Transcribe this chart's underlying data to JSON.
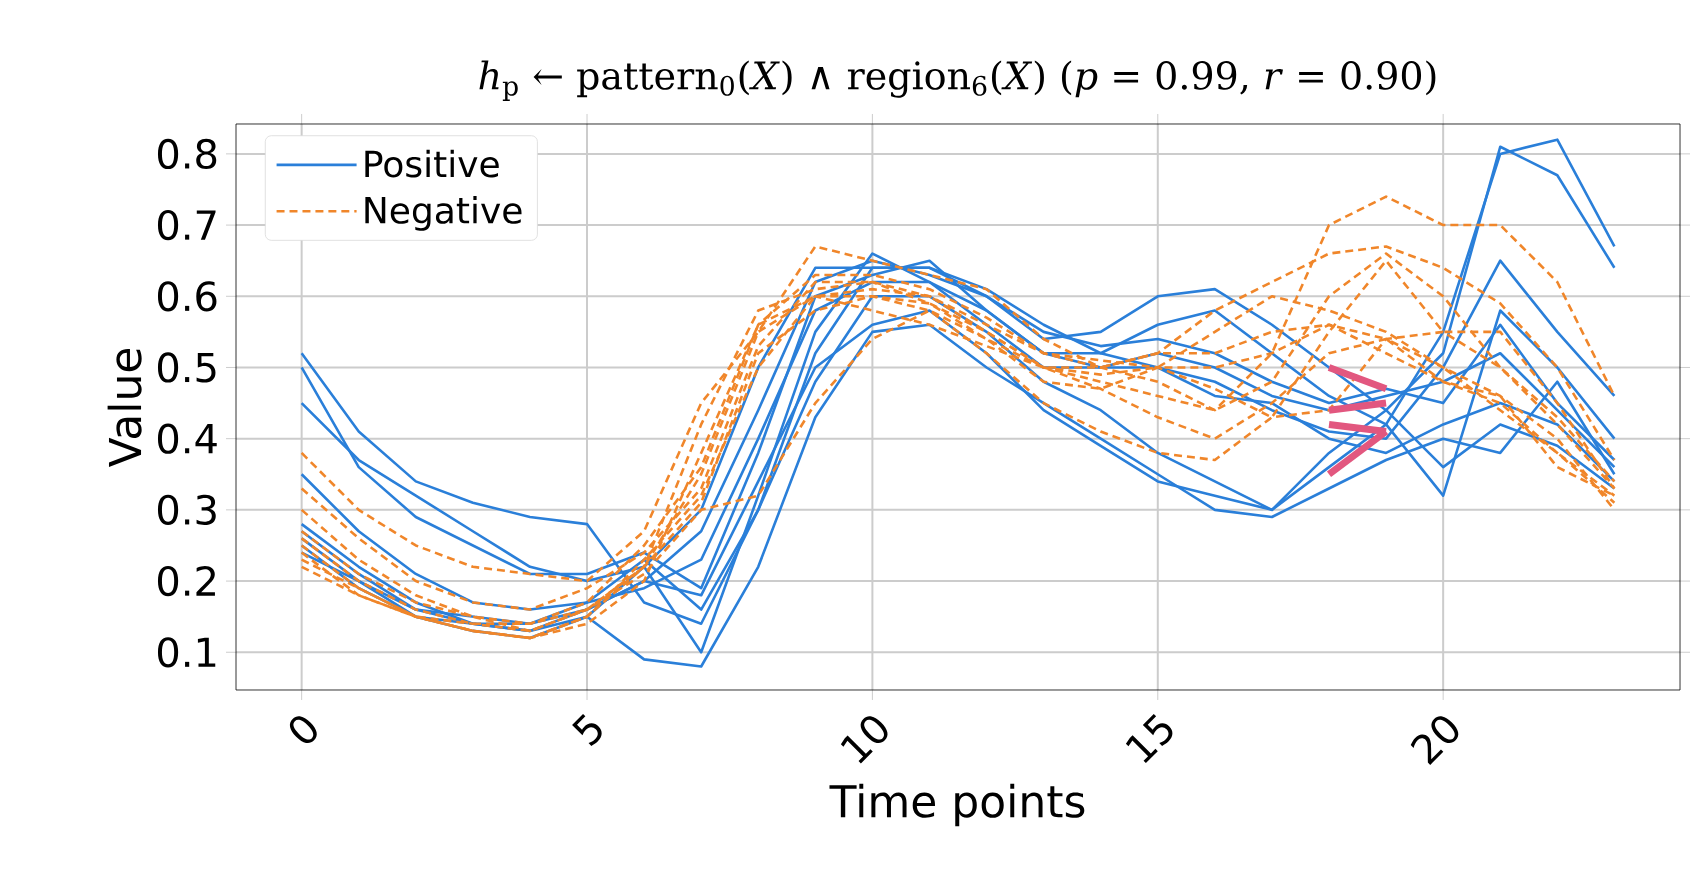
{
  "chart_data": {
    "type": "line",
    "title": "*h*$_{p}$ ← pattern$_{0}$(*X*) ∧ region$_{6}$(*X*) (*p* = 0.99, *r* = 0.90)",
    "xlabel": "Time points",
    "ylabel": "Value",
    "x": [
      0,
      1,
      2,
      3,
      4,
      5,
      6,
      7,
      8,
      9,
      10,
      11,
      12,
      13,
      14,
      15,
      16,
      17,
      18,
      19,
      20,
      21,
      22,
      23
    ],
    "xlim": [
      -1.15,
      24.15
    ],
    "ylim": [
      0.047,
      0.842
    ],
    "xticks": [
      0,
      5,
      10,
      15,
      20
    ],
    "yticks": [
      0.1,
      0.2,
      0.3,
      0.4,
      0.5,
      0.6,
      0.7,
      0.8
    ],
    "grid": true,
    "legend": "top left",
    "marker": "none",
    "series": [
      {
        "name": "Positive",
        "color": "#2a7fd9",
        "line_style": "solid",
        "values": [
          0.52,
          0.41,
          0.34,
          0.31,
          0.29,
          0.28,
          0.17,
          0.14,
          0.3,
          0.52,
          0.64,
          0.64,
          0.6,
          0.54,
          0.55,
          0.6,
          0.61,
          0.56,
          0.5,
          0.44,
          0.52,
          0.81,
          0.77,
          0.64
        ]
      },
      {
        "color": "#2a7fd9",
        "line_style": "solid",
        "values": [
          0.5,
          0.36,
          0.29,
          0.25,
          0.21,
          0.21,
          0.24,
          0.19,
          0.38,
          0.6,
          0.63,
          0.65,
          0.58,
          0.52,
          0.52,
          0.56,
          0.58,
          0.52,
          0.46,
          0.42,
          0.55,
          0.8,
          0.82,
          0.67
        ]
      },
      {
        "color": "#2a7fd9",
        "line_style": "solid",
        "values": [
          0.45,
          0.37,
          0.32,
          0.27,
          0.22,
          0.2,
          0.22,
          0.1,
          0.32,
          0.55,
          0.66,
          0.62,
          0.56,
          0.5,
          0.5,
          0.5,
          0.48,
          0.44,
          0.41,
          0.4,
          0.5,
          0.65,
          0.55,
          0.46
        ]
      },
      {
        "color": "#2a7fd9",
        "line_style": "solid",
        "values": [
          0.35,
          0.27,
          0.21,
          0.17,
          0.16,
          0.17,
          0.23,
          0.16,
          0.3,
          0.48,
          0.6,
          0.6,
          0.55,
          0.48,
          0.44,
          0.38,
          0.34,
          0.3,
          0.36,
          0.42,
          0.32,
          0.58,
          0.5,
          0.4
        ]
      },
      {
        "color": "#2a7fd9",
        "line_style": "solid",
        "values": [
          0.28,
          0.22,
          0.17,
          0.14,
          0.13,
          0.15,
          0.09,
          0.08,
          0.22,
          0.43,
          0.55,
          0.56,
          0.5,
          0.45,
          0.4,
          0.35,
          0.3,
          0.29,
          0.33,
          0.37,
          0.4,
          0.38,
          0.48,
          0.35
        ]
      },
      {
        "color": "#2a7fd9",
        "line_style": "solid",
        "values": [
          0.27,
          0.21,
          0.16,
          0.14,
          0.13,
          0.16,
          0.2,
          0.27,
          0.44,
          0.62,
          0.65,
          0.63,
          0.6,
          0.55,
          0.53,
          0.54,
          0.52,
          0.48,
          0.45,
          0.47,
          0.45,
          0.56,
          0.45,
          0.37
        ]
      },
      {
        "color": "#2a7fd9",
        "line_style": "solid",
        "values": [
          0.26,
          0.2,
          0.15,
          0.13,
          0.12,
          0.15,
          0.22,
          0.3,
          0.5,
          0.64,
          0.64,
          0.64,
          0.61,
          0.56,
          0.52,
          0.5,
          0.46,
          0.45,
          0.4,
          0.38,
          0.42,
          0.45,
          0.42,
          0.34
        ]
      },
      {
        "color": "#2a7fd9",
        "line_style": "solid",
        "values": [
          0.25,
          0.19,
          0.15,
          0.14,
          0.14,
          0.16,
          0.2,
          0.18,
          0.34,
          0.5,
          0.56,
          0.58,
          0.52,
          0.44,
          0.39,
          0.34,
          0.32,
          0.3,
          0.38,
          0.44,
          0.36,
          0.42,
          0.39,
          0.33
        ]
      },
      {
        "color": "#2a7fd9",
        "line_style": "solid",
        "values": [
          0.24,
          0.2,
          0.16,
          0.15,
          0.14,
          0.17,
          0.19,
          0.23,
          0.4,
          0.58,
          0.62,
          0.62,
          0.58,
          0.52,
          0.5,
          0.52,
          0.5,
          0.46,
          0.44,
          0.46,
          0.48,
          0.52,
          0.44,
          0.36
        ]
      },
      {
        "name": "Negative",
        "color": "#f0862a",
        "line_style": "dashed",
        "values": [
          0.38,
          0.3,
          0.25,
          0.22,
          0.21,
          0.2,
          0.27,
          0.45,
          0.55,
          0.67,
          0.65,
          0.63,
          0.61,
          0.54,
          0.5,
          0.48,
          0.44,
          0.52,
          0.7,
          0.74,
          0.7,
          0.7,
          0.62,
          0.46
        ]
      },
      {
        "color": "#f0862a",
        "line_style": "dashed",
        "values": [
          0.33,
          0.26,
          0.2,
          0.17,
          0.16,
          0.19,
          0.24,
          0.33,
          0.53,
          0.62,
          0.62,
          0.6,
          0.56,
          0.52,
          0.5,
          0.52,
          0.58,
          0.62,
          0.66,
          0.67,
          0.64,
          0.59,
          0.5,
          0.37
        ]
      },
      {
        "color": "#f0862a",
        "line_style": "dashed",
        "values": [
          0.3,
          0.23,
          0.18,
          0.15,
          0.14,
          0.17,
          0.25,
          0.36,
          0.56,
          0.63,
          0.63,
          0.61,
          0.57,
          0.52,
          0.51,
          0.5,
          0.47,
          0.43,
          0.55,
          0.65,
          0.55,
          0.55,
          0.45,
          0.33
        ]
      },
      {
        "color": "#f0862a",
        "line_style": "dashed",
        "values": [
          0.26,
          0.2,
          0.16,
          0.14,
          0.14,
          0.16,
          0.22,
          0.42,
          0.58,
          0.61,
          0.62,
          0.59,
          0.55,
          0.5,
          0.49,
          0.5,
          0.55,
          0.6,
          0.58,
          0.55,
          0.5,
          0.44,
          0.38,
          0.32
        ]
      },
      {
        "color": "#f0862a",
        "line_style": "dashed",
        "values": [
          0.25,
          0.19,
          0.15,
          0.13,
          0.12,
          0.15,
          0.23,
          0.32,
          0.5,
          0.6,
          0.6,
          0.58,
          0.54,
          0.5,
          0.5,
          0.52,
          0.52,
          0.55,
          0.56,
          0.52,
          0.48,
          0.45,
          0.38,
          0.31
        ]
      },
      {
        "color": "#f0862a",
        "line_style": "dashed",
        "values": [
          0.24,
          0.18,
          0.15,
          0.13,
          0.12,
          0.14,
          0.2,
          0.38,
          0.56,
          0.6,
          0.61,
          0.6,
          0.55,
          0.5,
          0.48,
          0.46,
          0.44,
          0.48,
          0.6,
          0.66,
          0.6,
          0.5,
          0.42,
          0.33
        ]
      },
      {
        "color": "#f0862a",
        "line_style": "dashed",
        "values": [
          0.23,
          0.19,
          0.15,
          0.14,
          0.13,
          0.16,
          0.21,
          0.3,
          0.32,
          0.45,
          0.54,
          0.58,
          0.52,
          0.45,
          0.41,
          0.38,
          0.37,
          0.43,
          0.44,
          0.54,
          0.55,
          0.5,
          0.43,
          0.34
        ]
      },
      {
        "color": "#f0862a",
        "line_style": "dashed",
        "values": [
          0.27,
          0.21,
          0.17,
          0.15,
          0.13,
          0.16,
          0.22,
          0.35,
          0.55,
          0.6,
          0.58,
          0.56,
          0.53,
          0.5,
          0.47,
          0.43,
          0.4,
          0.45,
          0.52,
          0.54,
          0.5,
          0.46,
          0.4,
          0.3
        ]
      },
      {
        "color": "#f0862a",
        "line_style": "dashed",
        "values": [
          0.22,
          0.18,
          0.15,
          0.13,
          0.12,
          0.15,
          0.22,
          0.31,
          0.52,
          0.58,
          0.6,
          0.59,
          0.54,
          0.48,
          0.47,
          0.5,
          0.5,
          0.52,
          0.56,
          0.54,
          0.48,
          0.46,
          0.36,
          0.32
        ]
      },
      {
        "color": "#e2577f",
        "line_style": "solid",
        "values": [
          null,
          null,
          null,
          null,
          null,
          null,
          null,
          null,
          null,
          null,
          null,
          null,
          null,
          null,
          null,
          null,
          null,
          null,
          0.5,
          0.47,
          null,
          null,
          null,
          null
        ]
      },
      {
        "color": "#e2577f",
        "line_style": "solid",
        "values": [
          null,
          null,
          null,
          null,
          null,
          null,
          null,
          null,
          null,
          null,
          null,
          null,
          null,
          null,
          null,
          null,
          null,
          null,
          0.44,
          0.45,
          null,
          null,
          null,
          null
        ]
      },
      {
        "color": "#e2577f",
        "line_style": "solid",
        "values": [
          null,
          null,
          null,
          null,
          null,
          null,
          null,
          null,
          null,
          null,
          null,
          null,
          null,
          null,
          null,
          null,
          null,
          null,
          0.42,
          0.41,
          null,
          null,
          null,
          null
        ]
      },
      {
        "color": "#e2577f",
        "line_style": "solid",
        "values": [
          null,
          null,
          null,
          null,
          null,
          null,
          null,
          null,
          null,
          null,
          null,
          null,
          null,
          null,
          null,
          null,
          null,
          null,
          0.35,
          0.41,
          null,
          null,
          null,
          null
        ]
      }
    ]
  }
}
